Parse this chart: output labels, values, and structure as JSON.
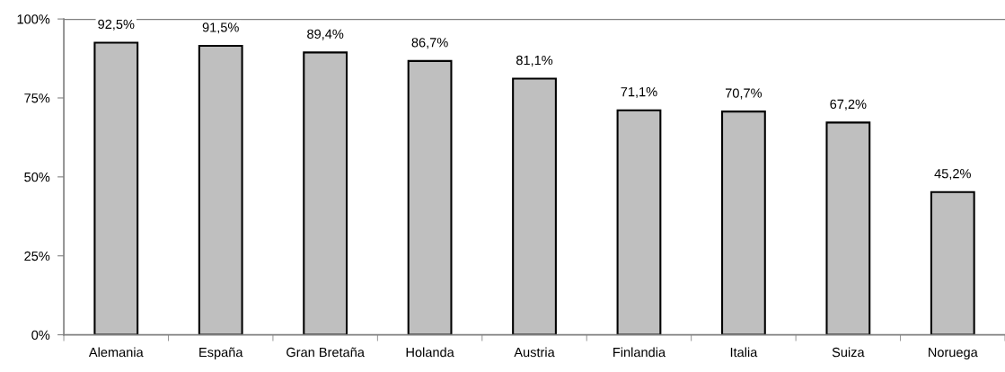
{
  "chart_data": {
    "type": "bar",
    "categories": [
      "Alemania",
      "España",
      "Gran Bretaña",
      "Holanda",
      "Austria",
      "Finlandia",
      "Italia",
      "Suiza",
      "Noruega"
    ],
    "values": [
      92.5,
      91.5,
      89.4,
      86.7,
      81.1,
      71.1,
      70.7,
      67.2,
      45.2
    ],
    "value_labels": [
      "92,5%",
      "91,5%",
      "89,4%",
      "86,7%",
      "81,1%",
      "71,1%",
      "70,7%",
      "67,2%",
      "45,2%"
    ],
    "color": "#bfbfbf",
    "ylim": [
      0,
      100
    ],
    "yticks": [
      {
        "value": 0,
        "label": "0%"
      },
      {
        "value": 25,
        "label": "25%"
      },
      {
        "value": 50,
        "label": "50%"
      },
      {
        "value": 75,
        "label": "75%"
      },
      {
        "value": 100,
        "label": "100%"
      }
    ],
    "ref_lines": [
      {
        "axis": "y",
        "value": 100,
        "color": "#808080"
      }
    ]
  }
}
